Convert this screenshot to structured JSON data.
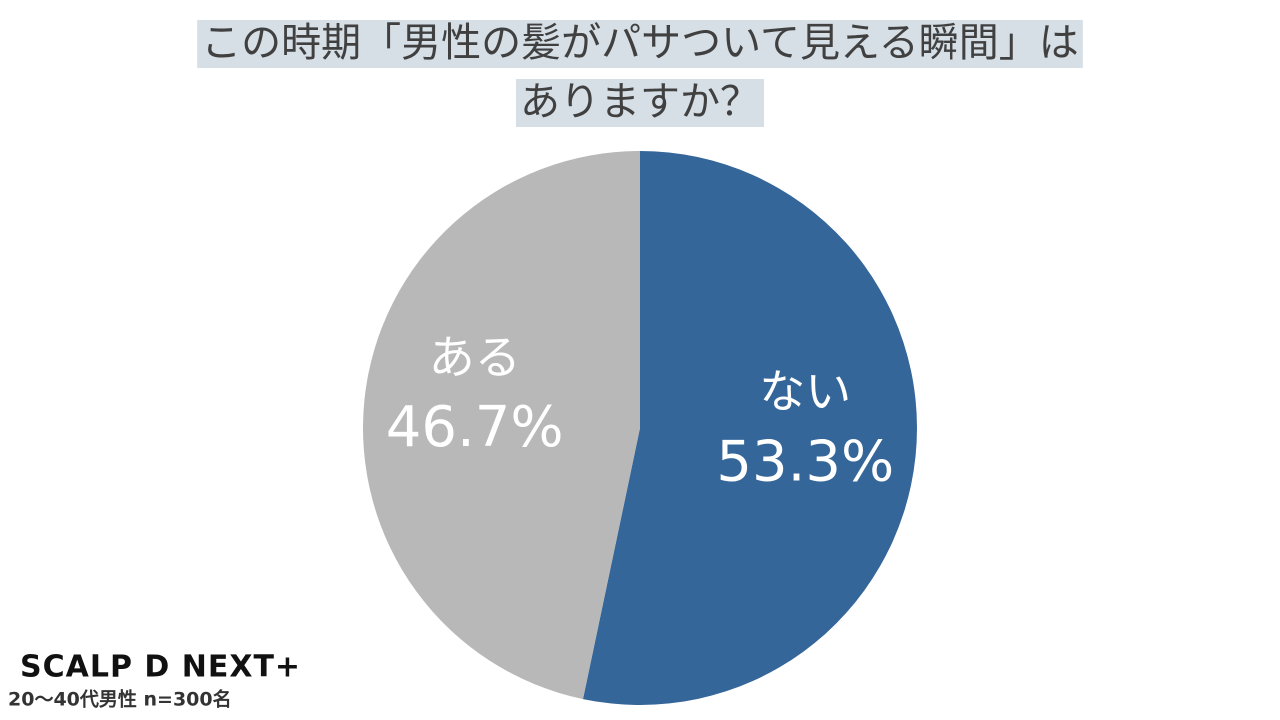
{
  "chart_data": {
    "type": "pie",
    "title": [
      "この時期「男性の髪がパサついて見える瞬間」は",
      "ありますか？"
    ],
    "categories": [
      "ない",
      "ある"
    ],
    "values": [
      53.3,
      46.7
    ],
    "value_labels": [
      "53.3%",
      "46.7%"
    ],
    "colors": [
      "#346699",
      "#b8b8b8"
    ],
    "logo": "SCALP D NEXT+",
    "note": "20〜40代男性 n=300名"
  }
}
